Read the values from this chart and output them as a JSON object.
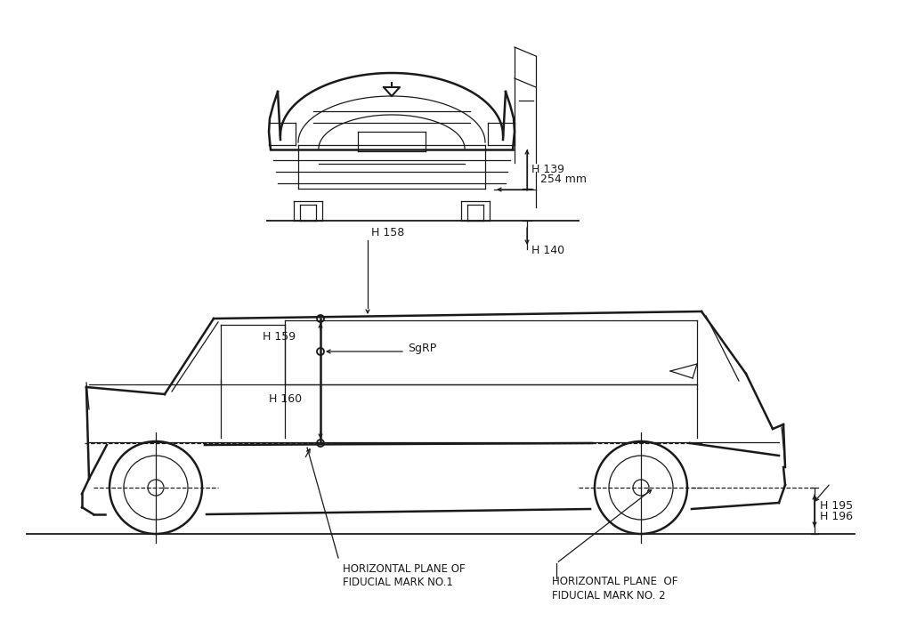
{
  "bg_color": "#ffffff",
  "line_color": "#1a1a1a",
  "annotations_top": {
    "H139": "H 139",
    "H140": "H 140",
    "dim_254": "254 mm"
  },
  "annotations_bottom": {
    "H158": "H 158",
    "H159": "H 159",
    "H160": "H 160",
    "SgRP": "SgRP",
    "H195": "H 195",
    "H196": "H 196",
    "fiducial1_line1": "HORIZONTAL PLANE OF",
    "fiducial1_line2": "FIDUCIAL MARK NO.1",
    "fiducial2_line1": "HORIZONTAL PLANE  OF",
    "fiducial2_line2": "FIDUCIAL MARK NO. 2"
  }
}
